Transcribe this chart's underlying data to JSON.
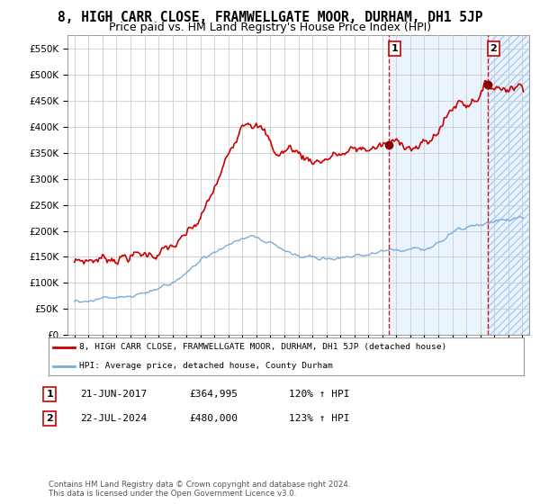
{
  "title": "8, HIGH CARR CLOSE, FRAMWELLGATE MOOR, DURHAM, DH1 5JP",
  "subtitle": "Price paid vs. HM Land Registry's House Price Index (HPI)",
  "title_fontsize": 10.5,
  "subtitle_fontsize": 9,
  "legend_line1": "8, HIGH CARR CLOSE, FRAMWELLGATE MOOR, DURHAM, DH1 5JP (detached house)",
  "legend_line2": "HPI: Average price, detached house, County Durham",
  "transaction1_label": "1",
  "transaction1_date": "21-JUN-2017",
  "transaction1_price": "£364,995",
  "transaction1_hpi": "120% ↑ HPI",
  "transaction2_label": "2",
  "transaction2_date": "22-JUL-2024",
  "transaction2_price": "£480,000",
  "transaction2_hpi": "123% ↑ HPI",
  "copyright": "Contains HM Land Registry data © Crown copyright and database right 2024.\nThis data is licensed under the Open Government Licence v3.0.",
  "red_color": "#cc0000",
  "blue_color": "#7aaddb",
  "dashed_line_color": "#cc0000",
  "marker1_x": 2017.47,
  "marker1_y": 364995,
  "marker2_x": 2024.55,
  "marker2_y": 480000,
  "vline1_x": 2017.47,
  "vline2_x": 2024.55,
  "ylim": [
    0,
    575000
  ],
  "xlim_start": 1994.5,
  "xlim_end": 2027.5,
  "shading1_start": 2017.47,
  "shading1_end": 2024.55,
  "shading1_color": "#ddeeff",
  "shading2_start": 2024.55,
  "shading2_end": 2027.5,
  "shading2_color": "#ddeeff"
}
